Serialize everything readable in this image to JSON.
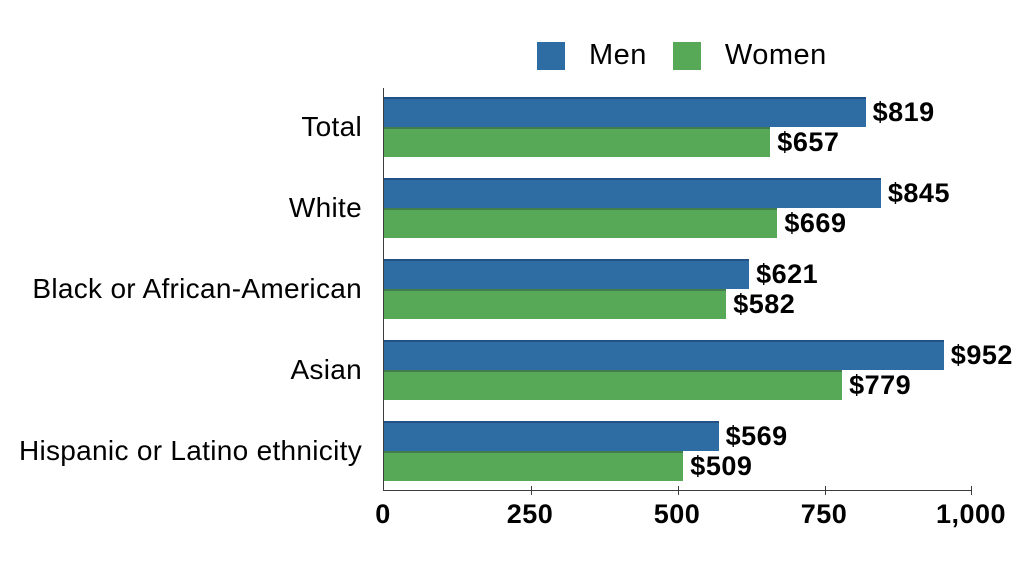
{
  "chart_data": {
    "type": "bar",
    "orientation": "horizontal",
    "title": "",
    "xlabel": "",
    "ylabel": "",
    "categories": [
      "Total",
      "White",
      "Black or African-American",
      "Asian",
      "Hispanic or Latino ethnicity"
    ],
    "series": [
      {
        "name": "Men",
        "color": "#2E6CA4",
        "values": [
          819,
          845,
          621,
          952,
          569
        ],
        "value_labels": [
          "$819",
          "$845",
          "$621",
          "$952",
          "$569"
        ]
      },
      {
        "name": "Women",
        "color": "#57A957",
        "values": [
          657,
          669,
          582,
          779,
          509
        ],
        "value_labels": [
          "$657",
          "$669",
          "$582",
          "$779",
          "$509"
        ]
      }
    ],
    "xlim": [
      0,
      1000
    ],
    "xticks": [
      0,
      250,
      500,
      750,
      1000
    ],
    "xticklabels": [
      "0",
      "250",
      "500",
      "750",
      "1,000"
    ],
    "legend_position": "top-center",
    "grid": false,
    "background": "#FFFFFF",
    "axis_color": "#3C3C3C",
    "text_color": "#000000"
  }
}
